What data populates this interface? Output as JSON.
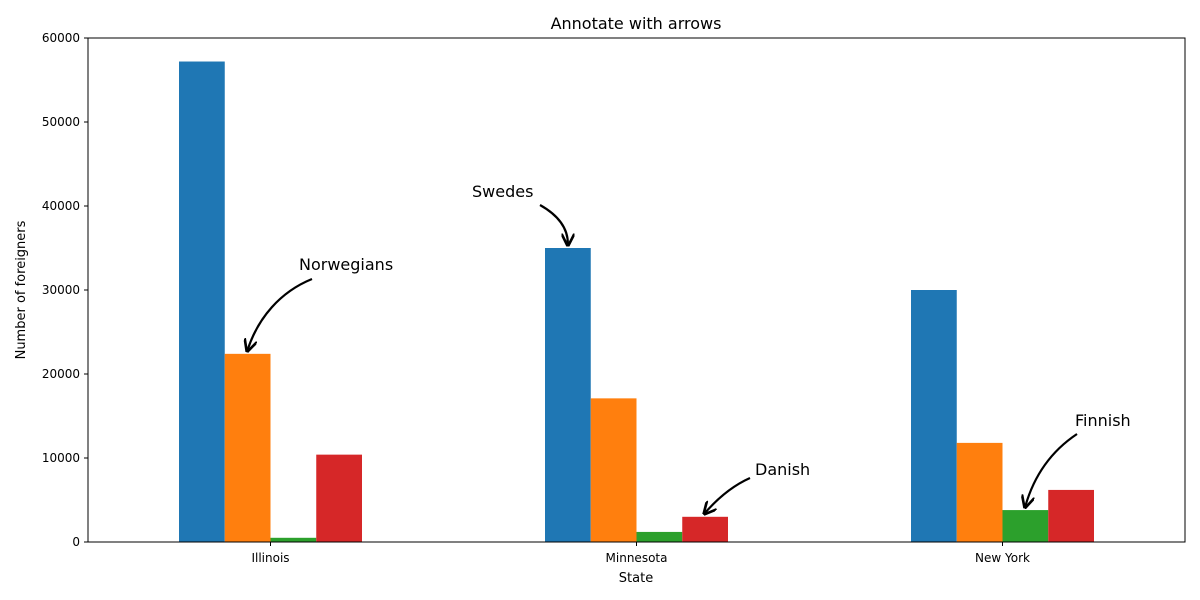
{
  "chart_data": {
    "type": "bar",
    "title": "Annotate with arrows",
    "xlabel": "State",
    "ylabel": "Number of foreigners",
    "categories": [
      "Illinois",
      "Minnesota",
      "New York"
    ],
    "ylim": [
      0,
      60000
    ],
    "yticks": [
      0,
      10000,
      20000,
      30000,
      40000,
      50000,
      60000
    ],
    "grid": false,
    "legend": "none",
    "series": [
      {
        "values": [
          57200,
          35000,
          30000
        ],
        "color": "#1f77b4"
      },
      {
        "values": [
          22400,
          17100,
          11800
        ],
        "color": "#ff7f0e"
      },
      {
        "values": [
          500,
          1200,
          3800
        ],
        "color": "#2ca02c"
      },
      {
        "values": [
          10400,
          3000,
          6200
        ],
        "color": "#d62728"
      }
    ],
    "annotations": [
      {
        "text": "Norwegians",
        "category": 0,
        "series": 1
      },
      {
        "text": "Swedes",
        "category": 1,
        "series": 0
      },
      {
        "text": "Danish",
        "category": 1,
        "series": 3
      },
      {
        "text": "Finnish",
        "category": 2,
        "series": 2
      }
    ]
  }
}
